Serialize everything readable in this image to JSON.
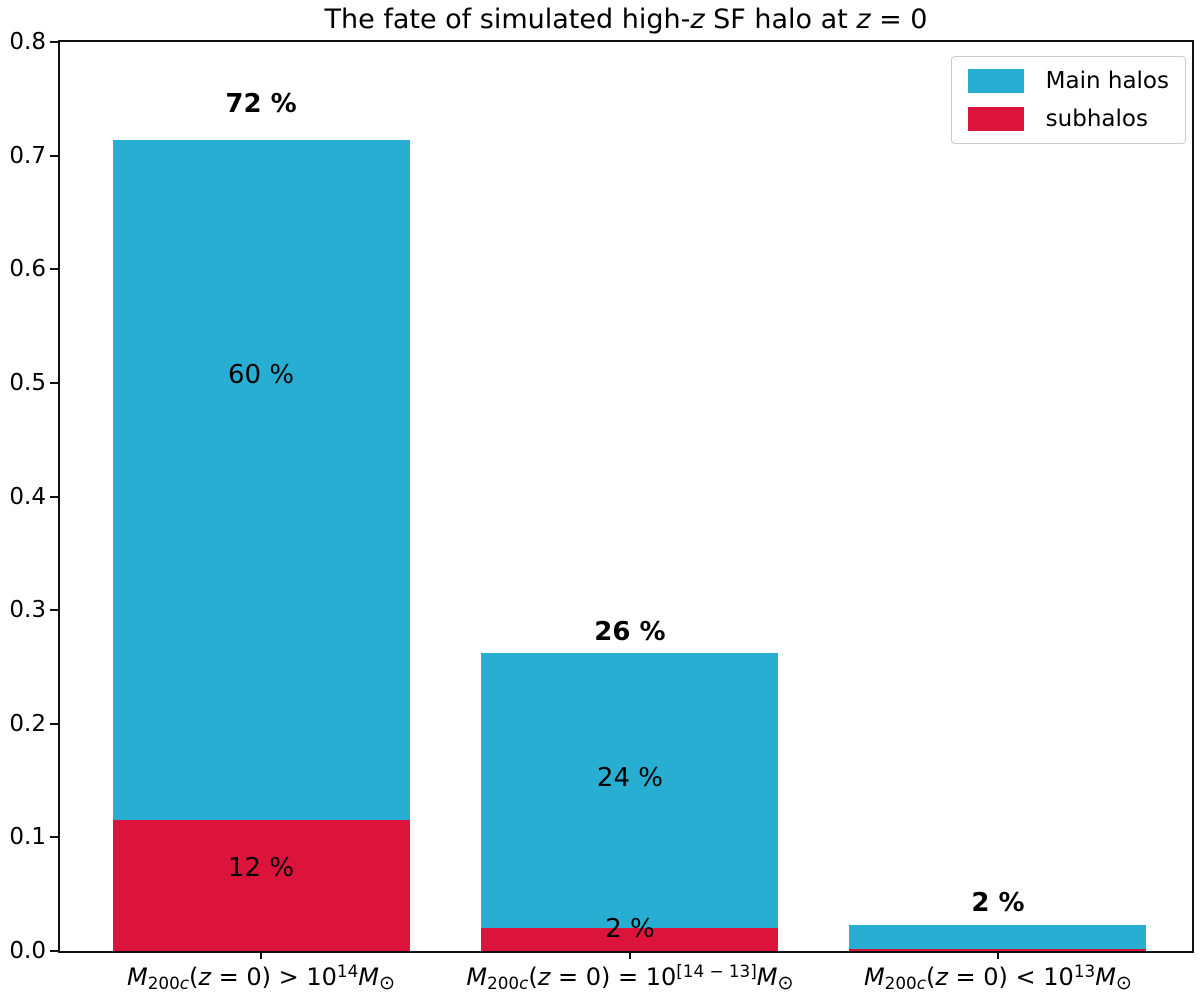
{
  "chart_data": {
    "type": "bar",
    "stacked": true,
    "grid": false,
    "title": "The fate of simulated high-z SF halo at z = 0",
    "title_runs": [
      {
        "t": "The fate of simulated high-",
        "s": "n"
      },
      {
        "t": "z",
        "s": "i"
      },
      {
        "t": " SF halo at ",
        "s": "n"
      },
      {
        "t": "z",
        "s": "i"
      },
      {
        "t": " = 0",
        "s": "n"
      }
    ],
    "xlabel": "",
    "ylabel": "",
    "ylim": [
      0.0,
      0.8
    ],
    "yticks": [
      "0.0",
      "0.1",
      "0.2",
      "0.3",
      "0.4",
      "0.5",
      "0.6",
      "0.7",
      "0.8"
    ],
    "categories": [
      "M_200c(z = 0) > 10^14 M_sun",
      "M_200c(z = 0) = 10^[14 - 13] M_sun",
      "M_200c(z = 0) < 10^13 M_sun"
    ],
    "category_runs": [
      [
        {
          "t": "M",
          "s": "i"
        },
        {
          "t": "200",
          "s": "sub"
        },
        {
          "t": "c",
          "s": "subi"
        },
        {
          "t": "(",
          "s": "n"
        },
        {
          "t": "z",
          "s": "i"
        },
        {
          "t": " = 0) > 10",
          "s": "n"
        },
        {
          "t": "14",
          "s": "sup"
        },
        {
          "t": "M",
          "s": "i"
        },
        {
          "t": "⊙",
          "s": "subsun"
        }
      ],
      [
        {
          "t": "M",
          "s": "i"
        },
        {
          "t": "200",
          "s": "sub"
        },
        {
          "t": "c",
          "s": "subi"
        },
        {
          "t": "(",
          "s": "n"
        },
        {
          "t": "z",
          "s": "i"
        },
        {
          "t": " = 0) = 10",
          "s": "n"
        },
        {
          "t": "[14 − 13]",
          "s": "sup"
        },
        {
          "t": "M",
          "s": "i"
        },
        {
          "t": "⊙",
          "s": "subsun"
        }
      ],
      [
        {
          "t": "M",
          "s": "i"
        },
        {
          "t": "200",
          "s": "sub"
        },
        {
          "t": "c",
          "s": "subi"
        },
        {
          "t": "(",
          "s": "n"
        },
        {
          "t": "z",
          "s": "i"
        },
        {
          "t": " = 0) < 10",
          "s": "n"
        },
        {
          "t": "13",
          "s": "sup"
        },
        {
          "t": "M",
          "s": "i"
        },
        {
          "t": "⊙",
          "s": "subsun"
        }
      ]
    ],
    "series": [
      {
        "name": "subhalos",
        "color": "#dc143c",
        "values": [
          0.115,
          0.02,
          0.002
        ]
      },
      {
        "name": "Main halos",
        "color": "#29aed3",
        "values": [
          0.599,
          0.242,
          0.021
        ]
      }
    ],
    "legend": {
      "position": "upper right",
      "entries": [
        {
          "label": "Main halos",
          "color": "#29aed3"
        },
        {
          "label": "subhalos",
          "color": "#dc143c"
        }
      ]
    },
    "annotations": [
      {
        "cat": 0,
        "text": "72 %",
        "y": 0.745,
        "bold": true
      },
      {
        "cat": 0,
        "text": "60 %",
        "y": 0.507,
        "bold": false
      },
      {
        "cat": 0,
        "text": "12 %",
        "y": 0.073,
        "bold": false
      },
      {
        "cat": 1,
        "text": "26 %",
        "y": 0.281,
        "bold": true
      },
      {
        "cat": 1,
        "text": "24 %",
        "y": 0.152,
        "bold": false
      },
      {
        "cat": 1,
        "text": "2 %",
        "y": 0.019,
        "bold": false
      },
      {
        "cat": 2,
        "text": "2 %",
        "y": 0.042,
        "bold": true
      }
    ]
  },
  "colors": {
    "axis": "#111111",
    "background": "#ffffff",
    "legend_border": "#cccccc",
    "main_halos": "#29aed3",
    "subhalos": "#dc143c"
  }
}
